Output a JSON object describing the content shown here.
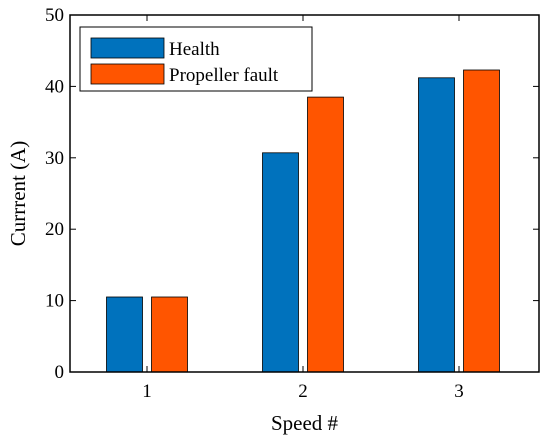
{
  "chart_data": {
    "type": "bar",
    "categories": [
      "1",
      "2",
      "3"
    ],
    "series": [
      {
        "name": "Health",
        "values": [
          10.5,
          30.7,
          41.2
        ],
        "color": "#0072BD"
      },
      {
        "name": "Propeller fault",
        "values": [
          10.5,
          38.5,
          42.3
        ],
        "color": "#FF5500"
      }
    ],
    "xlabel": "Speed #",
    "ylabel": "Currrent (A)",
    "ylim": [
      0,
      50
    ],
    "yticks": [
      0,
      10,
      20,
      30,
      40,
      50
    ],
    "grid": false,
    "legend_position": "top-left"
  }
}
